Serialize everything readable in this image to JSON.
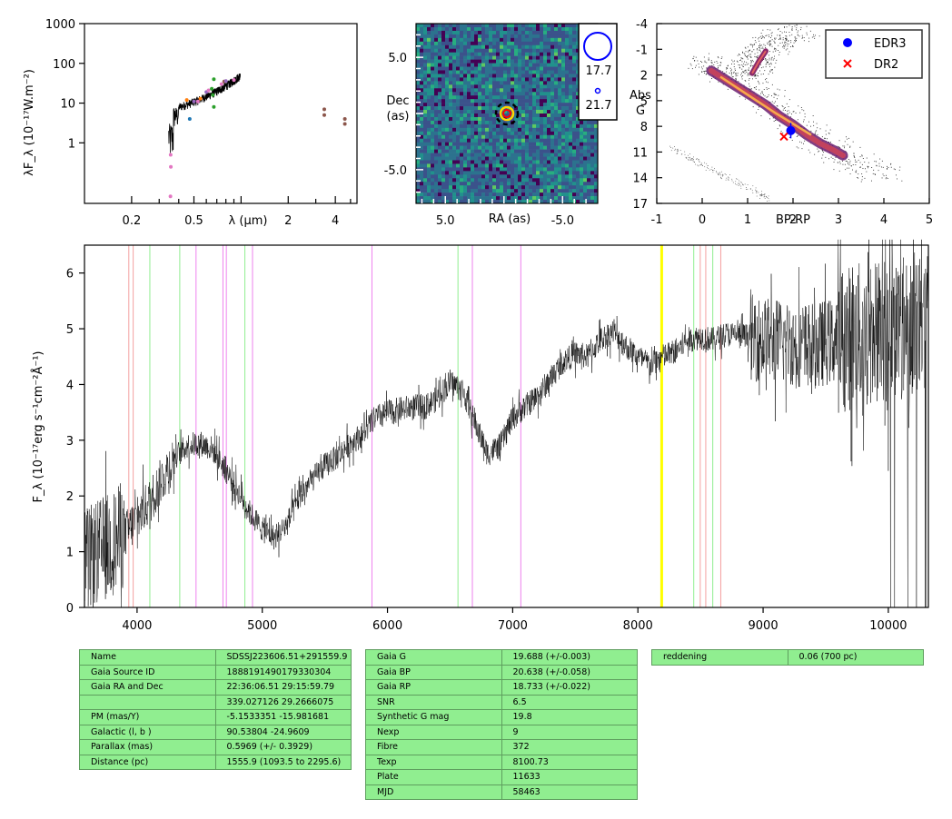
{
  "chart_data": [
    {
      "type": "scatter",
      "panel": "sed",
      "xlabel": "λ (μm)",
      "ylabel": "λF_λ (10⁻¹⁷W.m⁻²)",
      "xscale": "log",
      "yscale": "log",
      "xlim": [
        0.1,
        5.5
      ],
      "ylim": [
        0.03,
        1000
      ],
      "xticks": [
        "0.2",
        "0.5",
        "2",
        "4"
      ],
      "yticks": [
        "1000",
        "100",
        "10",
        "1"
      ],
      "points": [
        {
          "x": 0.355,
          "y": 0.5,
          "color": "#e377c2"
        },
        {
          "x": 0.356,
          "y": 0.25,
          "color": "#e377c2"
        },
        {
          "x": 0.354,
          "y": 0.045,
          "color": "#e377c2"
        },
        {
          "x": 0.45,
          "y": 12,
          "color": "#ff7f0e"
        },
        {
          "x": 0.47,
          "y": 4,
          "color": "#1f77b4"
        },
        {
          "x": 0.5,
          "y": 11,
          "color": "#9467bd"
        },
        {
          "x": 0.53,
          "y": 11,
          "color": "#e377c2"
        },
        {
          "x": 0.55,
          "y": 13,
          "color": "#ff7f0e"
        },
        {
          "x": 0.6,
          "y": 19,
          "color": "#9467bd"
        },
        {
          "x": 0.62,
          "y": 21,
          "color": "#e377c2"
        },
        {
          "x": 0.65,
          "y": 23,
          "color": "#2ca02c"
        },
        {
          "x": 0.66,
          "y": 16,
          "color": "#2ca02c"
        },
        {
          "x": 0.67,
          "y": 40,
          "color": "#2ca02c"
        },
        {
          "x": 0.67,
          "y": 8,
          "color": "#2ca02c"
        },
        {
          "x": 0.75,
          "y": 30,
          "color": "#e377c2"
        },
        {
          "x": 0.78,
          "y": 35,
          "color": "#8c564b"
        },
        {
          "x": 0.8,
          "y": 36,
          "color": "#9467bd"
        },
        {
          "x": 0.9,
          "y": 38,
          "color": "#e377c2"
        },
        {
          "x": 3.4,
          "y": 7,
          "color": "#8c564b"
        },
        {
          "x": 3.4,
          "y": 5,
          "color": "#8c564b"
        },
        {
          "x": 4.6,
          "y": 4,
          "color": "#8c564b"
        },
        {
          "x": 4.6,
          "y": 3,
          "color": "#8c564b"
        }
      ]
    },
    {
      "type": "heatmap",
      "panel": "image",
      "xlabel": "RA (as)",
      "ylabel": "Dec\n(as)",
      "xlim": [
        7.5,
        -8.0
      ],
      "ylim": [
        -8.0,
        8.0
      ],
      "xticks": [
        "5.0",
        "-5.0"
      ],
      "yticks": [
        "5.0",
        "-5.0"
      ],
      "source": {
        "ra": 0.0,
        "dec": 0.0
      },
      "legend": [
        "17.7",
        "21.7"
      ]
    },
    {
      "type": "scatter",
      "panel": "hrd",
      "xlabel": "BP-RP",
      "ylabel": "Abs\nG",
      "xlim": [
        -1,
        5
      ],
      "ylim": [
        17,
        -4
      ],
      "xticks": [
        "-1",
        "0",
        "1",
        "2",
        "3",
        "4",
        "5"
      ],
      "yticks": [
        "-4",
        "-1",
        "2",
        "5",
        "8",
        "11",
        "14",
        "17"
      ],
      "series": [
        {
          "name": "EDR3",
          "x": 1.95,
          "y": 8.5,
          "color": "#0000ff",
          "marker": "circle"
        },
        {
          "name": "DR2",
          "x": 1.8,
          "y": 9.2,
          "color": "#ff0000",
          "marker": "x"
        }
      ]
    },
    {
      "type": "line",
      "panel": "spectrum",
      "xlabel": "",
      "ylabel": "F_λ (10⁻¹⁷erg s⁻¹cm⁻²Å⁻¹)",
      "xlim": [
        3580,
        10320
      ],
      "ylim": [
        0,
        6.5
      ],
      "xticks": [
        "4000",
        "5000",
        "6000",
        "7000",
        "8000",
        "9000",
        "10000"
      ],
      "yticks": [
        "0",
        "1",
        "2",
        "3",
        "4",
        "5",
        "6"
      ],
      "continuum": [
        [
          3580,
          0.8
        ],
        [
          3700,
          1.0
        ],
        [
          3900,
          1.3
        ],
        [
          4000,
          1.6
        ],
        [
          4100,
          1.9
        ],
        [
          4200,
          2.3
        ],
        [
          4300,
          2.7
        ],
        [
          4400,
          2.9
        ],
        [
          4500,
          2.95
        ],
        [
          4600,
          2.85
        ],
        [
          4700,
          2.5
        ],
        [
          4800,
          2.1
        ],
        [
          4900,
          1.7
        ],
        [
          5000,
          1.4
        ],
        [
          5100,
          1.25
        ],
        [
          5200,
          1.5
        ],
        [
          5300,
          2.0
        ],
        [
          5400,
          2.3
        ],
        [
          5500,
          2.55
        ],
        [
          5600,
          2.7
        ],
        [
          5700,
          2.95
        ],
        [
          5800,
          3.1
        ],
        [
          5900,
          3.4
        ],
        [
          6000,
          3.5
        ],
        [
          6100,
          3.55
        ],
        [
          6200,
          3.6
        ],
        [
          6300,
          3.6
        ],
        [
          6400,
          3.75
        ],
        [
          6500,
          4.05
        ],
        [
          6600,
          3.9
        ],
        [
          6700,
          3.3
        ],
        [
          6800,
          2.75
        ],
        [
          6900,
          2.9
        ],
        [
          7000,
          3.4
        ],
        [
          7100,
          3.6
        ],
        [
          7200,
          3.8
        ],
        [
          7300,
          4.1
        ],
        [
          7400,
          4.4
        ],
        [
          7500,
          4.55
        ],
        [
          7600,
          4.5
        ],
        [
          7700,
          4.8
        ],
        [
          7800,
          4.95
        ],
        [
          7900,
          4.7
        ],
        [
          8000,
          4.5
        ],
        [
          8100,
          4.35
        ],
        [
          8200,
          4.5
        ],
        [
          8300,
          4.6
        ],
        [
          8400,
          4.8
        ],
        [
          8500,
          4.85
        ],
        [
          8600,
          4.8
        ],
        [
          8700,
          4.9
        ],
        [
          8800,
          4.9
        ],
        [
          8900,
          4.85
        ],
        [
          9000,
          4.8
        ],
        [
          9200,
          4.75
        ],
        [
          9400,
          4.7
        ],
        [
          9600,
          4.8
        ],
        [
          9800,
          4.9
        ],
        [
          10000,
          5.0
        ],
        [
          10200,
          5.1
        ],
        [
          10320,
          5.1
        ]
      ],
      "lines": [
        {
          "x": 3934,
          "color": "#f4a0a0"
        },
        {
          "x": 3969,
          "color": "#f4a0a0"
        },
        {
          "x": 4102,
          "color": "#90ee90"
        },
        {
          "x": 4341,
          "color": "#90ee90"
        },
        {
          "x": 4471,
          "color": "#ee82ee"
        },
        {
          "x": 4686,
          "color": "#ee82ee"
        },
        {
          "x": 4713,
          "color": "#ee82ee"
        },
        {
          "x": 4861,
          "color": "#90ee90"
        },
        {
          "x": 4922,
          "color": "#ee82ee"
        },
        {
          "x": 5876,
          "color": "#ee82ee"
        },
        {
          "x": 6563,
          "color": "#90ee90"
        },
        {
          "x": 6678,
          "color": "#ee82ee"
        },
        {
          "x": 7065,
          "color": "#ee82ee"
        },
        {
          "x": 8190,
          "color": "#ffff00"
        },
        {
          "x": 8446,
          "color": "#90ee90"
        },
        {
          "x": 8498,
          "color": "#f4a0a0"
        },
        {
          "x": 8542,
          "color": "#f4a0a0"
        },
        {
          "x": 8598,
          "color": "#90ee90"
        },
        {
          "x": 8662,
          "color": "#f4a0a0"
        }
      ]
    }
  ],
  "tables": {
    "left": [
      [
        "Name",
        "SDSSJ223606.51+291559.9"
      ],
      [
        "Gaia Source ID",
        "1888191490179330304"
      ],
      [
        "Gaia RA and Dec",
        "22:36:06.51    29:15:59.79"
      ],
      [
        "",
        "339.027126    29.2666075"
      ],
      [
        "PM (mas/Y)",
        "-5.1533351    -15.981681"
      ],
      [
        "Galactic (l, b )",
        "90.53804    -24.9609"
      ],
      [
        "Parallax (mas)",
        "0.5969 (+/- 0.3929)"
      ],
      [
        "Distance (pc)",
        "1555.9 (1093.5 to 2295.6)"
      ]
    ],
    "middle": [
      [
        "Gaia G",
        "19.688 (+/-0.003)"
      ],
      [
        "Gaia BP",
        "20.638 (+/-0.058)"
      ],
      [
        "Gaia RP",
        "18.733 (+/-0.022)"
      ],
      [
        "SNR",
        "6.5"
      ],
      [
        "Synthetic G mag",
        "19.8"
      ],
      [
        "Nexp",
        "9"
      ],
      [
        "Fibre",
        "372"
      ],
      [
        "Texp",
        "8100.73"
      ],
      [
        "Plate",
        "11633"
      ],
      [
        "MJD",
        "58463"
      ]
    ],
    "right": [
      [
        "reddening",
        "0.06 (700 pc)"
      ]
    ]
  }
}
